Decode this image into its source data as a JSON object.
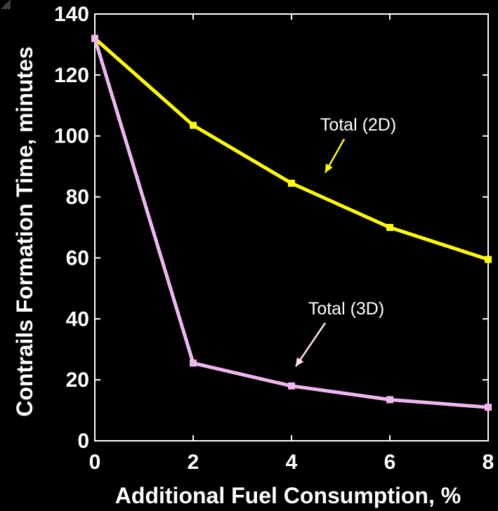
{
  "chart_data": {
    "type": "line",
    "xlabel": "Additional Fuel Consumption, %",
    "ylabel": "Contrails Formation Time, minutes",
    "xlim": [
      0,
      8
    ],
    "ylim": [
      0,
      140
    ],
    "xticks": [
      0,
      2,
      4,
      6,
      8
    ],
    "yticks": [
      0,
      20,
      40,
      60,
      80,
      100,
      120,
      140
    ],
    "x": [
      0,
      2,
      4,
      6,
      8
    ],
    "series": [
      {
        "name": "Total (2D)",
        "values": [
          132,
          103.5,
          84.5,
          70,
          59.5
        ],
        "color": "#ffff00"
      },
      {
        "name": "Total (3D)",
        "values": [
          132,
          25.5,
          18,
          13.5,
          11
        ],
        "color": "#f0b8f0"
      }
    ],
    "annotations": [
      {
        "text": "Total (2D)",
        "arrow_color": "#ffff00"
      },
      {
        "text": "Total (3D)",
        "arrow_color": "#ffe4ec"
      }
    ],
    "grid": false,
    "background": "#000000",
    "axis_color": "#ffffff"
  }
}
